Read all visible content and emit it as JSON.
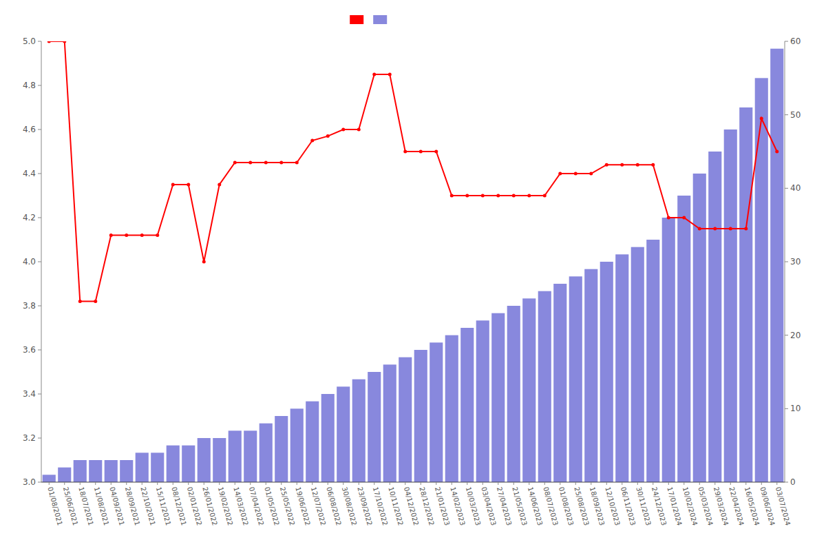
{
  "chart_data": {
    "type": "bar",
    "categories": [
      "01/08/2021",
      "25/06/2021",
      "18/07/2021",
      "11/08/2021",
      "04/09/2021",
      "28/09/2021",
      "22/10/2021",
      "15/11/2021",
      "08/12/2021",
      "02/01/2022",
      "26/01/2022",
      "19/02/2022",
      "14/03/2022",
      "07/04/2022",
      "01/05/2022",
      "25/05/2022",
      "19/06/2022",
      "12/07/2022",
      "06/08/2022",
      "30/08/2022",
      "23/09/2022",
      "17/10/2022",
      "10/11/2022",
      "04/12/2022",
      "28/12/2022",
      "21/01/2023",
      "14/02/2023",
      "10/03/2023",
      "03/04/2023",
      "27/04/2023",
      "21/05/2023",
      "14/06/2023",
      "08/07/2023",
      "01/08/2023",
      "25/08/2023",
      "18/09/2023",
      "12/10/2023",
      "06/11/2023",
      "30/11/2023",
      "24/12/2023",
      "17/01/2024",
      "10/02/2024",
      "05/03/2024",
      "29/03/2024",
      "22/04/2024",
      "16/05/2024",
      "09/06/2024",
      "03/07/2024"
    ],
    "series": [
      {
        "type": "bar",
        "axis": "y2",
        "color": "#8888dd",
        "values": [
          1,
          2,
          3,
          3,
          3,
          3,
          4,
          4,
          5,
          5,
          6,
          6,
          7,
          7,
          8,
          9,
          10,
          11,
          12,
          13,
          14,
          15,
          16,
          17,
          18,
          19,
          20,
          21,
          22,
          23,
          24,
          25,
          26,
          27,
          28,
          29,
          30,
          31,
          32,
          33,
          36,
          39,
          42,
          45,
          48,
          51,
          55,
          59
        ]
      },
      {
        "type": "line",
        "axis": "y",
        "color": "#ff0000",
        "marker": "circle",
        "line_style": "solid",
        "values": [
          5.0,
          5.0,
          3.82,
          3.82,
          4.12,
          4.12,
          4.12,
          4.12,
          4.35,
          4.35,
          4.0,
          4.35,
          4.45,
          4.45,
          4.45,
          4.45,
          4.45,
          4.55,
          4.57,
          4.6,
          4.6,
          4.85,
          4.85,
          4.5,
          4.5,
          4.5,
          4.3,
          4.3,
          4.3,
          4.3,
          4.3,
          4.3,
          4.3,
          4.4,
          4.4,
          4.4,
          4.44,
          4.44,
          4.44,
          4.44,
          4.2,
          4.2,
          4.15,
          4.15,
          4.15,
          4.15,
          4.65,
          4.5
        ]
      }
    ],
    "ylim": [
      3.0,
      5.0
    ],
    "yticks": [
      {
        "value": 3.0,
        "label": "3.0"
      },
      3.2,
      3.4,
      3.6,
      3.8,
      {
        "value": 4.0,
        "label": "4.0"
      },
      4.2,
      4.4,
      4.6,
      4.8,
      {
        "value": 5.0,
        "label": "5.0"
      }
    ],
    "y2lim": [
      0,
      60
    ],
    "y2ticks": [
      0,
      10,
      20,
      30,
      40,
      50,
      60
    ],
    "grid": false,
    "legend": "top"
  }
}
